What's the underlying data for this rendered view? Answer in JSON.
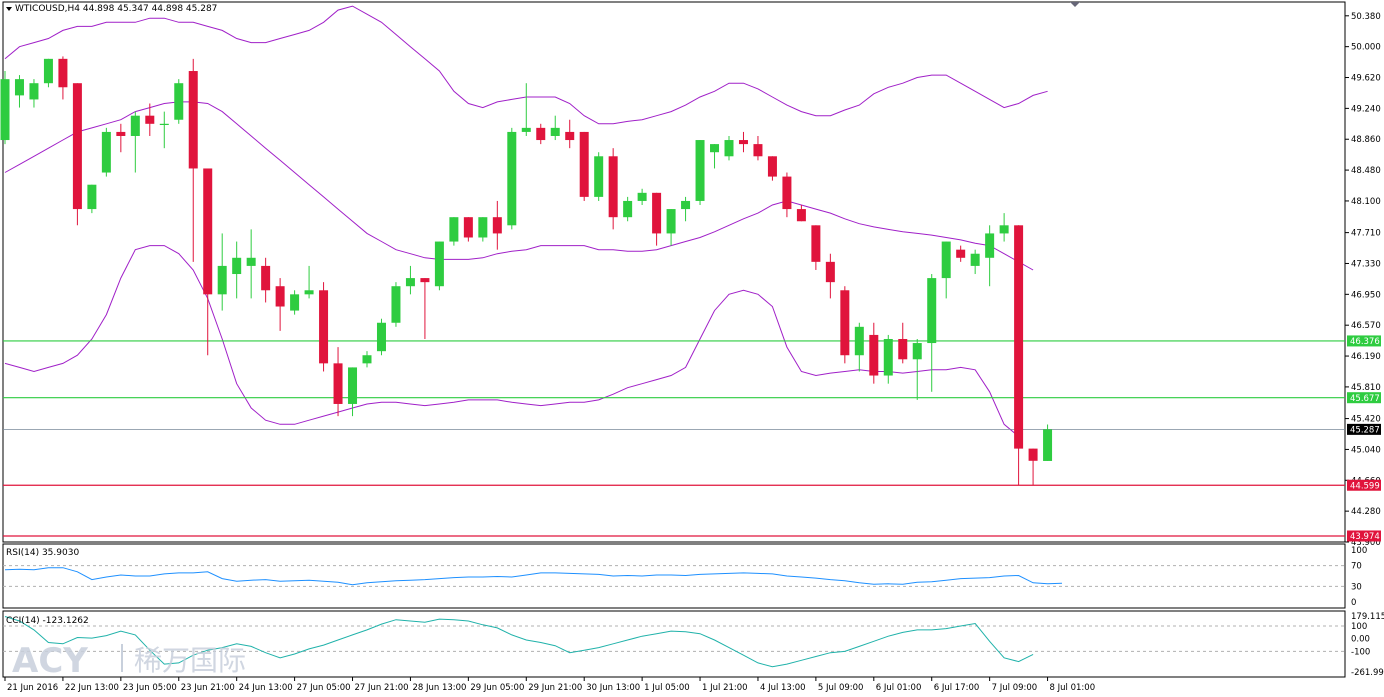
{
  "header": {
    "title": "WTICOUSD,H4 44.898 45.347 44.898 45.287"
  },
  "rsi_label": "RSI(14) 35.9030",
  "cci_label": "CCI(14) -123.1262",
  "watermark": {
    "latin": "ACY",
    "cjk": "稀万国际"
  },
  "colors": {
    "up": "#2ecc40",
    "down": "#e0143c",
    "band": "#a020c8",
    "hline_green": "#2ecc40",
    "hline_red": "#e0143c",
    "current": "#000000",
    "indicator": "#1e90ff",
    "cci": "#20b2aa"
  },
  "price_axis": {
    "ticks": [
      "50.380",
      "50.000",
      "49.620",
      "49.240",
      "48.860",
      "48.480",
      "48.100",
      "47.710",
      "47.330",
      "46.950",
      "46.570",
      "46.190",
      "45.810",
      "45.420",
      "45.040",
      "44.660",
      "44.280",
      "43.900"
    ],
    "tick_values": [
      50.38,
      50.0,
      49.62,
      49.24,
      48.86,
      48.48,
      48.1,
      47.71,
      47.33,
      46.95,
      46.57,
      46.19,
      45.81,
      45.42,
      45.04,
      44.66,
      44.28,
      43.9
    ]
  },
  "rsi_axis": {
    "ticks": [
      "100",
      "70",
      "30",
      "0"
    ]
  },
  "cci_axis": {
    "ticks": [
      "179.1154",
      "100",
      "0.00",
      "-100",
      "-261.990"
    ]
  },
  "price_labels": [
    {
      "text": "46.376",
      "value": 46.376,
      "kind": "green"
    },
    {
      "text": "45.677",
      "value": 45.677,
      "kind": "green"
    },
    {
      "text": "45.287",
      "value": 45.287,
      "kind": "current"
    },
    {
      "text": "44.599",
      "value": 44.599,
      "kind": "red"
    },
    {
      "text": "43.974",
      "value": 43.974,
      "kind": "red"
    }
  ],
  "time_axis": [
    "21 Jun 2016",
    "22 Jun 13:00",
    "23 Jun 05:00",
    "23 Jun 21:00",
    "24 Jun 13:00",
    "27 Jun 05:00",
    "27 Jun 21:00",
    "28 Jun 13:00",
    "29 Jun 05:00",
    "29 Jun 21:00",
    "30 Jun 13:00",
    "1 Jul 05:00",
    "1 Jul 21:00",
    "4 Jul 13:00",
    "5 Jul 09:00",
    "6 Jul 01:00",
    "6 Jul 17:00",
    "7 Jul 09:00",
    "8 Jul 01:00"
  ],
  "chart_data": {
    "type": "candlestick",
    "symbol": "WTICOUSD",
    "timeframe": "H4",
    "ylim": [
      43.9,
      50.55
    ],
    "candles": [
      {
        "o": 48.85,
        "h": 49.7,
        "l": 48.8,
        "c": 49.6
      },
      {
        "o": 49.4,
        "h": 49.65,
        "l": 49.25,
        "c": 49.6
      },
      {
        "o": 49.35,
        "h": 49.6,
        "l": 49.25,
        "c": 49.55
      },
      {
        "o": 49.55,
        "h": 49.85,
        "l": 49.5,
        "c": 49.85
      },
      {
        "o": 49.85,
        "h": 49.88,
        "l": 49.35,
        "c": 49.5
      },
      {
        "o": 49.55,
        "h": 49.55,
        "l": 47.8,
        "c": 48.0
      },
      {
        "o": 48.0,
        "h": 48.3,
        "l": 47.95,
        "c": 48.3
      },
      {
        "o": 48.45,
        "h": 49.0,
        "l": 48.4,
        "c": 48.95
      },
      {
        "o": 48.95,
        "h": 49.05,
        "l": 48.7,
        "c": 48.9
      },
      {
        "o": 48.9,
        "h": 49.2,
        "l": 48.45,
        "c": 49.15
      },
      {
        "o": 49.15,
        "h": 49.3,
        "l": 48.9,
        "c": 49.05
      },
      {
        "o": 49.05,
        "h": 49.2,
        "l": 48.75,
        "c": 49.05
      },
      {
        "o": 49.1,
        "h": 49.6,
        "l": 49.05,
        "c": 49.55
      },
      {
        "o": 49.7,
        "h": 49.85,
        "l": 47.35,
        "c": 48.5
      },
      {
        "o": 48.5,
        "h": 48.5,
        "l": 46.2,
        "c": 46.95
      },
      {
        "o": 46.95,
        "h": 47.7,
        "l": 46.75,
        "c": 47.3
      },
      {
        "o": 47.2,
        "h": 47.6,
        "l": 46.9,
        "c": 47.4
      },
      {
        "o": 47.3,
        "h": 47.75,
        "l": 46.9,
        "c": 47.4
      },
      {
        "o": 47.3,
        "h": 47.4,
        "l": 46.85,
        "c": 47.0
      },
      {
        "o": 47.05,
        "h": 47.15,
        "l": 46.5,
        "c": 46.8
      },
      {
        "o": 46.75,
        "h": 47.0,
        "l": 46.7,
        "c": 46.95
      },
      {
        "o": 46.95,
        "h": 47.3,
        "l": 46.9,
        "c": 47.0
      },
      {
        "o": 47.0,
        "h": 47.1,
        "l": 46.0,
        "c": 46.1
      },
      {
        "o": 46.1,
        "h": 46.3,
        "l": 45.45,
        "c": 45.6
      },
      {
        "o": 45.6,
        "h": 46.05,
        "l": 45.45,
        "c": 46.05
      },
      {
        "o": 46.1,
        "h": 46.25,
        "l": 46.05,
        "c": 46.2
      },
      {
        "o": 46.25,
        "h": 46.65,
        "l": 46.2,
        "c": 46.6
      },
      {
        "o": 46.6,
        "h": 47.1,
        "l": 46.55,
        "c": 47.05
      },
      {
        "o": 47.05,
        "h": 47.3,
        "l": 46.95,
        "c": 47.15
      },
      {
        "o": 47.15,
        "h": 47.15,
        "l": 46.4,
        "c": 47.1
      },
      {
        "o": 47.05,
        "h": 47.6,
        "l": 47.0,
        "c": 47.6
      },
      {
        "o": 47.6,
        "h": 47.9,
        "l": 47.55,
        "c": 47.9
      },
      {
        "o": 47.9,
        "h": 47.9,
        "l": 47.6,
        "c": 47.65
      },
      {
        "o": 47.65,
        "h": 47.9,
        "l": 47.6,
        "c": 47.9
      },
      {
        "o": 47.9,
        "h": 48.1,
        "l": 47.5,
        "c": 47.7
      },
      {
        "o": 47.8,
        "h": 49.0,
        "l": 47.75,
        "c": 48.95
      },
      {
        "o": 48.95,
        "h": 49.55,
        "l": 48.9,
        "c": 49.0
      },
      {
        "o": 49.0,
        "h": 49.05,
        "l": 48.8,
        "c": 48.85
      },
      {
        "o": 48.9,
        "h": 49.15,
        "l": 48.85,
        "c": 49.0
      },
      {
        "o": 48.95,
        "h": 49.1,
        "l": 48.75,
        "c": 48.85
      },
      {
        "o": 48.95,
        "h": 48.95,
        "l": 48.1,
        "c": 48.15
      },
      {
        "o": 48.15,
        "h": 48.7,
        "l": 48.1,
        "c": 48.65
      },
      {
        "o": 48.65,
        "h": 48.75,
        "l": 47.75,
        "c": 47.9
      },
      {
        "o": 47.9,
        "h": 48.15,
        "l": 47.85,
        "c": 48.1
      },
      {
        "o": 48.1,
        "h": 48.25,
        "l": 48.05,
        "c": 48.2
      },
      {
        "o": 48.2,
        "h": 48.2,
        "l": 47.55,
        "c": 47.7
      },
      {
        "o": 47.7,
        "h": 48.0,
        "l": 47.55,
        "c": 48.0
      },
      {
        "o": 48.0,
        "h": 48.15,
        "l": 47.85,
        "c": 48.1
      },
      {
        "o": 48.1,
        "h": 48.85,
        "l": 48.05,
        "c": 48.85
      },
      {
        "o": 48.7,
        "h": 48.8,
        "l": 48.5,
        "c": 48.8
      },
      {
        "o": 48.65,
        "h": 48.9,
        "l": 48.6,
        "c": 48.85
      },
      {
        "o": 48.85,
        "h": 48.95,
        "l": 48.7,
        "c": 48.8
      },
      {
        "o": 48.8,
        "h": 48.9,
        "l": 48.6,
        "c": 48.65
      },
      {
        "o": 48.65,
        "h": 48.65,
        "l": 48.35,
        "c": 48.4
      },
      {
        "o": 48.4,
        "h": 48.45,
        "l": 47.9,
        "c": 48.0
      },
      {
        "o": 48.0,
        "h": 48.05,
        "l": 47.85,
        "c": 47.85
      },
      {
        "o": 47.8,
        "h": 47.8,
        "l": 47.25,
        "c": 47.35
      },
      {
        "o": 47.35,
        "h": 47.45,
        "l": 46.9,
        "c": 47.1
      },
      {
        "o": 47.0,
        "h": 47.05,
        "l": 46.1,
        "c": 46.2
      },
      {
        "o": 46.2,
        "h": 46.6,
        "l": 46.0,
        "c": 46.55
      },
      {
        "o": 46.45,
        "h": 46.6,
        "l": 45.85,
        "c": 45.95
      },
      {
        "o": 45.95,
        "h": 46.45,
        "l": 45.85,
        "c": 46.4
      },
      {
        "o": 46.4,
        "h": 46.6,
        "l": 46.1,
        "c": 46.15
      },
      {
        "o": 46.15,
        "h": 46.4,
        "l": 45.65,
        "c": 46.35
      },
      {
        "o": 46.35,
        "h": 47.2,
        "l": 45.75,
        "c": 47.15
      },
      {
        "o": 47.15,
        "h": 47.6,
        "l": 46.9,
        "c": 47.6
      },
      {
        "o": 47.5,
        "h": 47.55,
        "l": 47.35,
        "c": 47.4
      },
      {
        "o": 47.3,
        "h": 47.5,
        "l": 47.2,
        "c": 47.45
      },
      {
        "o": 47.4,
        "h": 47.8,
        "l": 47.05,
        "c": 47.7
      },
      {
        "o": 47.7,
        "h": 47.95,
        "l": 47.6,
        "c": 47.8
      },
      {
        "o": 47.8,
        "h": 47.8,
        "l": 44.6,
        "c": 45.05
      },
      {
        "o": 45.05,
        "h": 45.05,
        "l": 44.6,
        "c": 44.9
      },
      {
        "o": 44.898,
        "h": 45.347,
        "l": 44.898,
        "c": 45.287
      }
    ],
    "bollinger_upper": [
      49.85,
      50.0,
      50.05,
      50.1,
      50.2,
      50.25,
      50.25,
      50.3,
      50.3,
      50.3,
      50.35,
      50.35,
      50.3,
      50.3,
      50.25,
      50.2,
      50.1,
      50.05,
      50.05,
      50.1,
      50.15,
      50.2,
      50.3,
      50.45,
      50.5,
      50.4,
      50.3,
      50.15,
      50.0,
      49.85,
      49.7,
      49.45,
      49.3,
      49.25,
      49.32,
      49.35,
      49.38,
      49.38,
      49.38,
      49.3,
      49.15,
      49.05,
      49.05,
      49.08,
      49.1,
      49.15,
      49.2,
      49.28,
      49.38,
      49.45,
      49.55,
      49.55,
      49.48,
      49.38,
      49.28,
      49.2,
      49.15,
      49.15,
      49.22,
      49.28,
      49.42,
      49.5,
      49.55,
      49.62,
      49.65,
      49.65,
      49.55,
      49.45,
      49.35,
      49.25,
      49.3,
      49.4,
      49.45
    ],
    "bollinger_middle": [
      48.45,
      48.55,
      48.65,
      48.75,
      48.85,
      48.95,
      49.0,
      49.05,
      49.1,
      49.2,
      49.25,
      49.3,
      49.32,
      49.32,
      49.3,
      49.2,
      49.05,
      48.9,
      48.75,
      48.6,
      48.45,
      48.3,
      48.15,
      48.0,
      47.85,
      47.7,
      47.6,
      47.5,
      47.45,
      47.4,
      47.38,
      47.38,
      47.38,
      47.4,
      47.45,
      47.48,
      47.5,
      47.55,
      47.55,
      47.55,
      47.55,
      47.5,
      47.5,
      47.48,
      47.48,
      47.5,
      47.55,
      47.6,
      47.65,
      47.72,
      47.8,
      47.88,
      47.95,
      48.05,
      48.1,
      48.05,
      48.0,
      47.95,
      47.88,
      47.82,
      47.78,
      47.75,
      47.72,
      47.7,
      47.68,
      47.65,
      47.62,
      47.58,
      47.55,
      47.45,
      47.35,
      47.25
    ],
    "bollinger_lower": [
      46.1,
      46.05,
      46.0,
      46.05,
      46.1,
      46.2,
      46.4,
      46.7,
      47.15,
      47.5,
      47.55,
      47.55,
      47.45,
      47.25,
      46.9,
      46.4,
      45.85,
      45.55,
      45.4,
      45.35,
      45.35,
      45.4,
      45.45,
      45.5,
      45.55,
      45.6,
      45.62,
      45.62,
      45.6,
      45.58,
      45.6,
      45.62,
      45.65,
      45.65,
      45.65,
      45.62,
      45.6,
      45.58,
      45.6,
      45.62,
      45.62,
      45.65,
      45.72,
      45.8,
      45.85,
      45.9,
      45.95,
      46.05,
      46.4,
      46.75,
      46.95,
      47.0,
      46.95,
      46.8,
      46.3,
      46.0,
      45.95,
      45.98,
      46.0,
      46.02,
      46.0,
      46.0,
      45.98,
      46.0,
      46.02,
      46.02,
      46.05,
      46.02,
      45.75,
      45.35,
      45.2
    ],
    "horizontal_lines": [
      {
        "value": 46.376,
        "color": "green"
      },
      {
        "value": 45.677,
        "color": "green"
      },
      {
        "value": 44.599,
        "color": "red"
      },
      {
        "value": 43.974,
        "color": "red"
      }
    ],
    "current_price": 45.287,
    "rsi": {
      "name": "RSI(14)",
      "last": 35.903,
      "ylim": [
        0,
        100
      ],
      "levels": [
        70,
        30
      ],
      "values": [
        62,
        63,
        62,
        66,
        66,
        58,
        43,
        48,
        52,
        50,
        50,
        54,
        56,
        56,
        58,
        45,
        40,
        42,
        43,
        40,
        41,
        42,
        40,
        38,
        33,
        37,
        39,
        41,
        42,
        43,
        45,
        47,
        48,
        48,
        49,
        48,
        52,
        56,
        56,
        55,
        54,
        53,
        50,
        51,
        50,
        52,
        52,
        51,
        53,
        54,
        55,
        56,
        55,
        54,
        50,
        48,
        46,
        43,
        41,
        37,
        34,
        35,
        34,
        38,
        39,
        42,
        45,
        46,
        47,
        50,
        51,
        37,
        35,
        36
      ]
    },
    "cci": {
      "name": "CCI(14)",
      "last": -123.1262,
      "ylim": [
        -261.99,
        179.1154
      ],
      "levels": [
        100,
        -100
      ],
      "values": [
        175,
        140,
        70,
        -30,
        -40,
        10,
        5,
        25,
        60,
        30,
        -90,
        -200,
        -190,
        -130,
        -90,
        -70,
        -40,
        -60,
        -110,
        -150,
        -120,
        -80,
        -50,
        -10,
        30,
        70,
        115,
        150,
        140,
        130,
        155,
        150,
        140,
        110,
        85,
        30,
        -10,
        -30,
        -55,
        -110,
        -90,
        -70,
        -40,
        -10,
        20,
        40,
        60,
        55,
        40,
        -10,
        -70,
        -130,
        -190,
        -220,
        -200,
        -170,
        -140,
        -110,
        -100,
        -60,
        -20,
        20,
        50,
        70,
        70,
        80,
        100,
        120,
        -20,
        -150,
        -180,
        -123
      ]
    }
  }
}
